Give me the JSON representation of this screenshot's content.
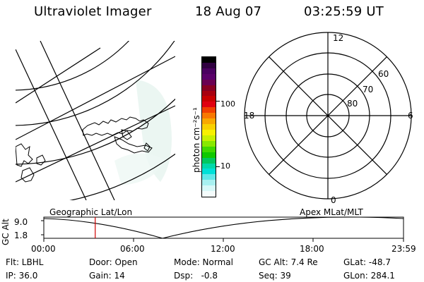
{
  "header": {
    "instrument": "Ultraviolet Imager",
    "date": "18 Aug 07",
    "time": "03:25:59 UT"
  },
  "colorbar": {
    "unit_label": "photon cm⁻²s⁻¹",
    "ticks": [
      "100",
      "10"
    ],
    "colors": [
      "#000000",
      "#300040",
      "#4a0060",
      "#5a006a",
      "#6a0052",
      "#880022",
      "#a80010",
      "#c80000",
      "#e00010",
      "#f04000",
      "#f87800",
      "#f8a800",
      "#f8d000",
      "#f8f000",
      "#c8f000",
      "#88e800",
      "#40d800",
      "#10c800",
      "#00c860",
      "#00d8a8",
      "#00e0d8",
      "#60e8e8",
      "#a8f0f0",
      "#d8f8f8",
      "#f4fcfc"
    ]
  },
  "polar_plot": {
    "lat_labels": [
      "60",
      "70",
      "80"
    ],
    "mlt_labels": {
      "top": "12",
      "left": "18",
      "right": "6",
      "bottom": "0"
    }
  },
  "timeline": {
    "yaxis_label": "GC Alt",
    "ymax": "9.0",
    "ymin": "1.8",
    "left_caption": "Geographic Lat/Lon",
    "right_caption": "Apex MLat/MLT",
    "x_ticks": [
      "00:00",
      "06:00",
      "12:00",
      "18:00",
      "23:59"
    ],
    "current_time_hours": 3.43
  },
  "status": {
    "filter": "Flt: LBHL",
    "ip": "IP: 36.0",
    "door": "Door: Open",
    "gain": "Gain: 14",
    "mode": "Mode: Normal",
    "dsp": "Dsp:   -0.8",
    "gc_alt": "GC Alt: 7.4 Re",
    "seq": "Seq: 39",
    "glat": "GLat: -48.7",
    "glon": "GLon: 284.1"
  }
}
